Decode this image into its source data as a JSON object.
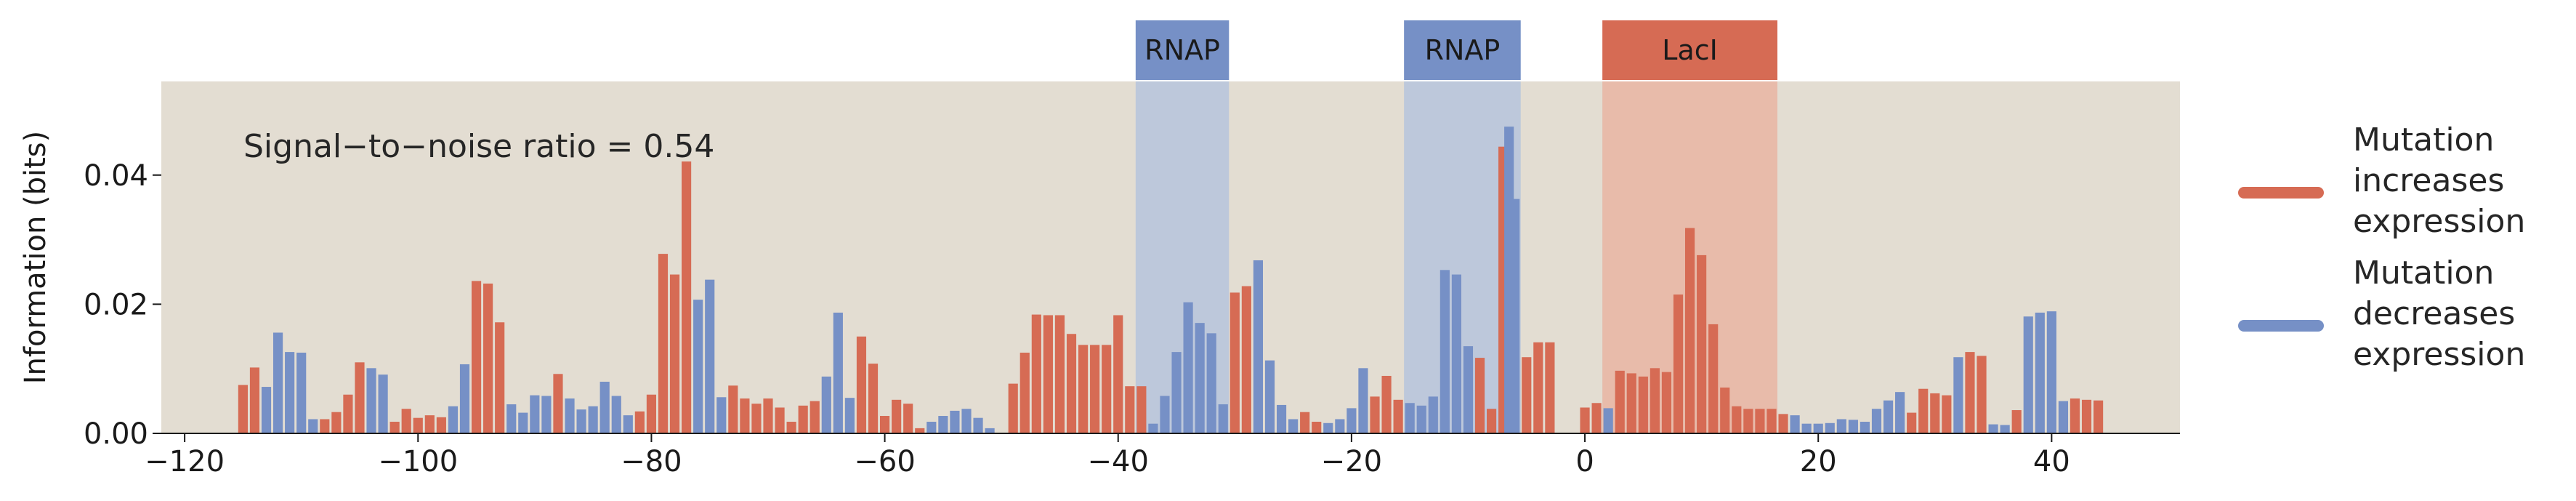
{
  "colors": {
    "increase": "#d66b54",
    "decrease": "#7690c6",
    "plot_bg": "#e3ddd2",
    "rnap_region": "#b8c5dc",
    "laci_region": "#e8b7a5",
    "rnap_header": "#7690c6",
    "laci_header": "#d66b54"
  },
  "chart_data": {
    "type": "bar",
    "title": "",
    "xlabel": "",
    "ylabel": "Information (bits)",
    "xlim": [
      -122,
      51
    ],
    "ylim": [
      0,
      0.0545
    ],
    "x_ticks": [
      -120,
      -100,
      -80,
      -60,
      -40,
      -20,
      0,
      20,
      40
    ],
    "x_tick_labels": [
      "−120",
      "−100",
      "−80",
      "−60",
      "−40",
      "−20",
      "0",
      "20",
      "40"
    ],
    "y_ticks": [
      0,
      0.02,
      0.04
    ],
    "y_tick_labels": [
      "0.00",
      "0.02",
      "0.04"
    ],
    "grid": false,
    "annotation": "Signal−to−noise ratio = 0.54",
    "regions": [
      {
        "label": "RNAP",
        "start": -38.5,
        "end": -30.5,
        "kind": "rnap"
      },
      {
        "label": "RNAP",
        "start": -15.5,
        "end": -5.5,
        "kind": "rnap"
      },
      {
        "label": "LacI",
        "start": 1.5,
        "end": 16.5,
        "kind": "laci"
      }
    ],
    "legend": {
      "placement": "right",
      "entries": [
        {
          "key": "increase",
          "label": [
            "Mutation",
            "increases",
            "expression"
          ]
        },
        {
          "key": "decrease",
          "label": [
            "Mutation",
            "decreases",
            "expression"
          ]
        }
      ]
    },
    "series": [
      {
        "key": "increase",
        "name": "Mutation increases expression",
        "points": [
          [
            -115,
            0.0075
          ],
          [
            -114,
            0.0102
          ],
          [
            -108,
            0.0022
          ],
          [
            -107,
            0.0033
          ],
          [
            -106,
            0.006
          ],
          [
            -105,
            0.011
          ],
          [
            -102,
            0.0018
          ],
          [
            -101,
            0.0038
          ],
          [
            -100,
            0.0024
          ],
          [
            -99,
            0.0028
          ],
          [
            -98,
            0.0025
          ],
          [
            -95,
            0.0236
          ],
          [
            -94,
            0.0232
          ],
          [
            -93,
            0.0172
          ],
          [
            -88,
            0.0092
          ],
          [
            -81,
            0.0034
          ],
          [
            -80,
            0.006
          ],
          [
            -79,
            0.0278
          ],
          [
            -78,
            0.0246
          ],
          [
            -77,
            0.0421
          ],
          [
            -73,
            0.0074
          ],
          [
            -72,
            0.0054
          ],
          [
            -71,
            0.0046
          ],
          [
            -70,
            0.0054
          ],
          [
            -69,
            0.004
          ],
          [
            -68,
            0.0018
          ],
          [
            -67,
            0.0043
          ],
          [
            -66,
            0.005
          ],
          [
            -62,
            0.015
          ],
          [
            -61,
            0.0108
          ],
          [
            -60,
            0.0027
          ],
          [
            -59,
            0.0052
          ],
          [
            -58,
            0.0046
          ],
          [
            -57,
            0.0008
          ],
          [
            -49,
            0.0077
          ],
          [
            -48,
            0.0125
          ],
          [
            -47,
            0.0184
          ],
          [
            -46,
            0.0183
          ],
          [
            -45,
            0.0183
          ],
          [
            -44,
            0.0154
          ],
          [
            -43,
            0.0137
          ],
          [
            -42,
            0.0137
          ],
          [
            -41,
            0.0137
          ],
          [
            -40,
            0.0183
          ],
          [
            -39,
            0.0073
          ],
          [
            -38,
            0.0073
          ],
          [
            -30,
            0.0218
          ],
          [
            -29,
            0.0228
          ],
          [
            -24,
            0.0033
          ],
          [
            -23,
            0.0018
          ],
          [
            -18,
            0.0057
          ],
          [
            -17,
            0.0089
          ],
          [
            -16,
            0.0052
          ],
          [
            -9,
            0.0117
          ],
          [
            -8,
            0.0038
          ],
          [
            -7,
            0.0444
          ],
          [
            -5,
            0.0118
          ],
          [
            -4,
            0.0141
          ],
          [
            -3,
            0.0141
          ],
          [
            0,
            0.004
          ],
          [
            1,
            0.0047
          ],
          [
            3,
            0.0097
          ],
          [
            4,
            0.0093
          ],
          [
            5,
            0.0088
          ],
          [
            6,
            0.0101
          ],
          [
            7,
            0.0095
          ],
          [
            8,
            0.0215
          ],
          [
            9,
            0.0318
          ],
          [
            10,
            0.0276
          ],
          [
            11,
            0.0169
          ],
          [
            12,
            0.0071
          ],
          [
            13,
            0.0042
          ],
          [
            14,
            0.0038
          ],
          [
            15,
            0.0038
          ],
          [
            16,
            0.0038
          ],
          [
            17,
            0.003
          ],
          [
            28,
            0.0032
          ],
          [
            29,
            0.0069
          ],
          [
            30,
            0.0062
          ],
          [
            31,
            0.0059
          ],
          [
            33,
            0.0126
          ],
          [
            34,
            0.012
          ],
          [
            37,
            0.0036
          ],
          [
            42,
            0.0054
          ],
          [
            43,
            0.0052
          ],
          [
            44,
            0.0051
          ]
        ]
      },
      {
        "key": "decrease",
        "name": "Mutation decreases expression",
        "points": [
          [
            -113,
            0.0072
          ],
          [
            -112,
            0.0156
          ],
          [
            -111,
            0.0126
          ],
          [
            -110,
            0.0125
          ],
          [
            -109,
            0.0022
          ],
          [
            -104,
            0.0101
          ],
          [
            -103,
            0.0091
          ],
          [
            -97,
            0.0042
          ],
          [
            -96,
            0.0107
          ],
          [
            -92,
            0.0045
          ],
          [
            -91,
            0.0032
          ],
          [
            -90,
            0.0059
          ],
          [
            -89,
            0.0058
          ],
          [
            -87,
            0.0054
          ],
          [
            -86,
            0.0037
          ],
          [
            -85,
            0.0042
          ],
          [
            -84,
            0.008
          ],
          [
            -83,
            0.0058
          ],
          [
            -82,
            0.0028
          ],
          [
            -76,
            0.0207
          ],
          [
            -75,
            0.0238
          ],
          [
            -74,
            0.0056
          ],
          [
            -65,
            0.0088
          ],
          [
            -64,
            0.0187
          ],
          [
            -63,
            0.0055
          ],
          [
            -56,
            0.0018
          ],
          [
            -55,
            0.0027
          ],
          [
            -54,
            0.0035
          ],
          [
            -53,
            0.0038
          ],
          [
            -52,
            0.0024
          ],
          [
            -51,
            0.0008
          ],
          [
            -37,
            0.0015
          ],
          [
            -36,
            0.0058
          ],
          [
            -35,
            0.0126
          ],
          [
            -34,
            0.0203
          ],
          [
            -33,
            0.0171
          ],
          [
            -32,
            0.0155
          ],
          [
            -31,
            0.0045
          ],
          [
            -28,
            0.0268
          ],
          [
            -27,
            0.0113
          ],
          [
            -26,
            0.0044
          ],
          [
            -25,
            0.0022
          ],
          [
            -22,
            0.0016
          ],
          [
            -21,
            0.0022
          ],
          [
            -20,
            0.0039
          ],
          [
            -19,
            0.0101
          ],
          [
            -15,
            0.0047
          ],
          [
            -14,
            0.0043
          ],
          [
            -13,
            0.0057
          ],
          [
            -12,
            0.0253
          ],
          [
            -11,
            0.0246
          ],
          [
            -10,
            0.0135
          ],
          [
            -6,
            0.0363
          ],
          [
            -6.5,
            0.0475
          ],
          [
            2,
            0.0039
          ],
          [
            18,
            0.0028
          ],
          [
            19,
            0.0015
          ],
          [
            20,
            0.0015
          ],
          [
            21,
            0.0016
          ],
          [
            22,
            0.0022
          ],
          [
            23,
            0.0021
          ],
          [
            24,
            0.0018
          ],
          [
            25,
            0.0038
          ],
          [
            26,
            0.0051
          ],
          [
            27,
            0.0064
          ],
          [
            32,
            0.0118
          ],
          [
            35,
            0.0014
          ],
          [
            36,
            0.0013
          ],
          [
            38,
            0.0181
          ],
          [
            39,
            0.0187
          ],
          [
            40,
            0.0189
          ],
          [
            41,
            0.005
          ]
        ]
      }
    ]
  }
}
